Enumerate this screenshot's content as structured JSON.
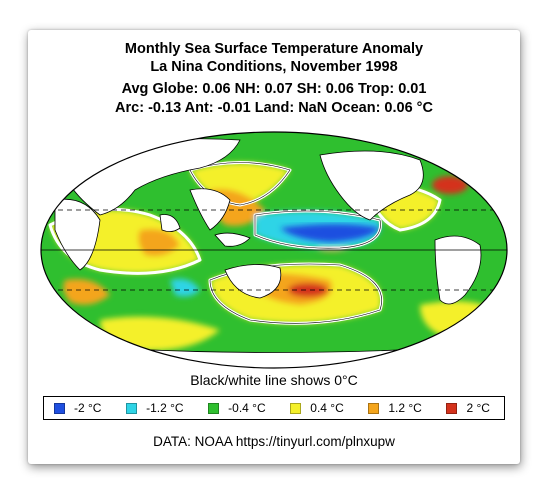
{
  "title_line1": "Monthly Sea Surface Temperature Anomaly",
  "title_line2": "La Nina Conditions, November 1998",
  "stats_line1": "Avg Globe: 0.06  NH: 0.07  SH: 0.06  Trop: 0.01",
  "stats_line2": "Arc: -0.13  Ant: -0.01  Land: NaN Ocean: 0.06 °C",
  "note": "Black/white line shows 0°C",
  "legend": [
    {
      "label": "-2 °C",
      "color": "#1f4fe0"
    },
    {
      "label": "-1.2 °C",
      "color": "#2fd4e6"
    },
    {
      "label": "-0.4 °C",
      "color": "#2fbf2f"
    },
    {
      "label": "0.4 °C",
      "color": "#f4f02a"
    },
    {
      "label": "1.2 °C",
      "color": "#f4a51c"
    },
    {
      "label": "2 °C",
      "color": "#d4321c"
    }
  ],
  "source": "DATA: NOAA https://tinyurl.com/plnxupw",
  "colors": {
    "land": "#ffffff",
    "ocean_neutral": "#2fbf2f",
    "warm": "#f4a51c",
    "cool": "#2fd4e6",
    "strong_cool": "#1f4fe0",
    "strong_warm": "#d4321c"
  }
}
